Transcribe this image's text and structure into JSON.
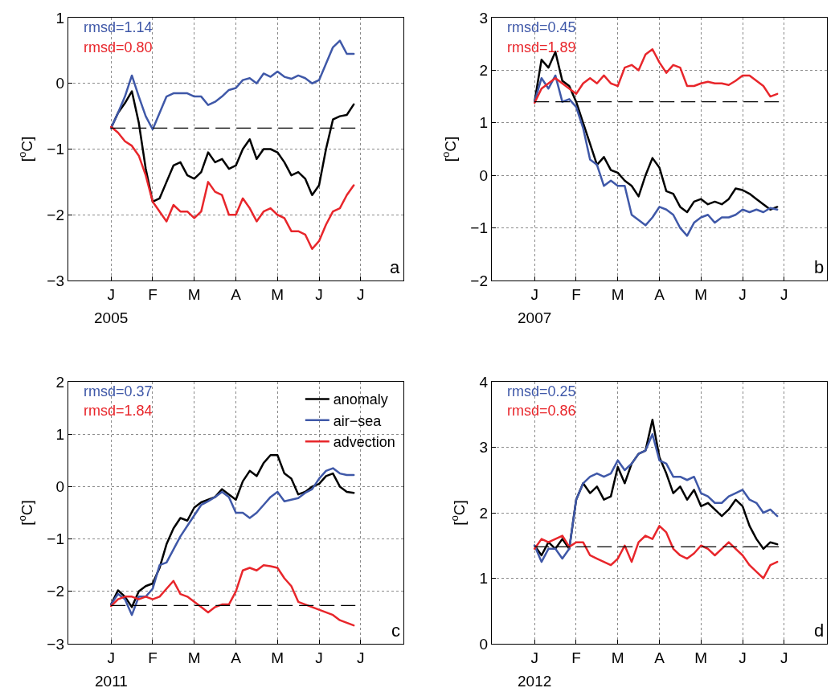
{
  "chart_data": [
    {
      "type": "line",
      "ylabel": "[$^{o}$C]",
      "ylim": [
        -3,
        1
      ],
      "yticks": [
        -3,
        -2,
        -1,
        0,
        1
      ],
      "categories": [
        "J",
        null,
        null,
        null,
        null,
        null,
        "F",
        null,
        null,
        null,
        null,
        null,
        "M",
        null,
        null,
        null,
        null,
        null,
        "A",
        null,
        null,
        null,
        null,
        null,
        "M",
        null,
        null,
        null,
        null,
        null,
        "J",
        null,
        null,
        null,
        null,
        null,
        "J"
      ],
      "grid": true,
      "legend": false,
      "line_style": "solid",
      "annotations": [
        "rmsd=1.14",
        "rmsd=0.80",
        "2005",
        "a"
      ],
      "ref_lines": [
        {
          "axis": "y",
          "value": -0.68,
          "color": "#000000",
          "line_style": "dashed"
        }
      ],
      "series": [
        {
          "color": "#000000",
          "values": [
            -0.68,
            -0.45,
            -0.3,
            -0.12,
            -0.6,
            -1.3,
            -1.8,
            -1.75,
            -1.5,
            -1.25,
            -1.2,
            -1.4,
            -1.45,
            -1.35,
            -1.05,
            -1.2,
            -1.15,
            -1.3,
            -1.25,
            -1.0,
            -0.85,
            -1.15,
            -1.0,
            -1.0,
            -1.05,
            -1.2,
            -1.4,
            -1.35,
            -1.45,
            -1.7,
            -1.55,
            -1.0,
            -0.55,
            -0.5,
            -0.48,
            -0.32,
            null
          ]
        },
        {
          "color": "#3f58a8",
          "values": [
            -0.68,
            -0.45,
            -0.2,
            0.12,
            -0.2,
            -0.5,
            -0.7,
            -0.45,
            -0.2,
            -0.15,
            -0.15,
            -0.15,
            -0.2,
            -0.2,
            -0.33,
            -0.28,
            -0.2,
            -0.1,
            -0.07,
            0.05,
            0.08,
            0.0,
            0.15,
            0.1,
            0.18,
            0.1,
            0.07,
            0.12,
            0.08,
            0.0,
            0.05,
            0.3,
            0.55,
            0.65,
            0.45,
            0.45,
            null
          ]
        },
        {
          "color": "#e8262b",
          "values": [
            -0.66,
            -0.75,
            -0.88,
            -0.95,
            -1.1,
            -1.4,
            -1.8,
            -1.95,
            -2.1,
            -1.85,
            -1.95,
            -1.95,
            -2.05,
            -1.95,
            -1.5,
            -1.65,
            -1.7,
            -2.0,
            -2.0,
            -1.75,
            -1.9,
            -2.1,
            -1.95,
            -1.9,
            -2.0,
            -2.05,
            -2.25,
            -2.25,
            -2.3,
            -2.52,
            -2.4,
            -2.15,
            -1.95,
            -1.9,
            -1.7,
            -1.55,
            null
          ]
        }
      ]
    },
    {
      "type": "line",
      "ylabel": "[$^{o}$C]",
      "ylim": [
        -2,
        3
      ],
      "yticks": [
        -2,
        -1,
        0,
        1,
        2,
        3
      ],
      "categories": [
        "J",
        null,
        null,
        null,
        null,
        null,
        "F",
        null,
        null,
        null,
        null,
        null,
        "M",
        null,
        null,
        null,
        null,
        null,
        "A",
        null,
        null,
        null,
        null,
        null,
        "M",
        null,
        null,
        null,
        null,
        null,
        "J",
        null,
        null,
        null,
        null,
        null,
        "J"
      ],
      "grid": true,
      "legend": false,
      "line_style": "solid",
      "annotations": [
        "rmsd=0.45",
        "rmsd=1.89",
        "2007",
        "b"
      ],
      "ref_lines": [
        {
          "axis": "y",
          "value": 1.4,
          "color": "#000000",
          "line_style": "dashed"
        }
      ],
      "series": [
        {
          "color": "#000000",
          "values": [
            1.4,
            2.2,
            2.05,
            2.35,
            1.8,
            1.7,
            1.4,
            1.0,
            0.6,
            0.2,
            0.35,
            0.1,
            0.05,
            -0.1,
            -0.2,
            -0.4,
            0.0,
            0.33,
            0.15,
            -0.3,
            -0.35,
            -0.6,
            -0.7,
            -0.5,
            -0.45,
            -0.55,
            -0.5,
            -0.55,
            -0.45,
            -0.25,
            -0.28,
            -0.35,
            -0.45,
            -0.55,
            -0.65,
            -0.6,
            null
          ]
        },
        {
          "color": "#3f58a8",
          "values": [
            1.4,
            1.85,
            1.65,
            1.9,
            1.4,
            1.45,
            1.3,
            0.9,
            0.3,
            0.2,
            -0.2,
            -0.1,
            -0.2,
            -0.2,
            -0.75,
            -0.85,
            -0.95,
            -0.8,
            -0.6,
            -0.65,
            -0.75,
            -1.0,
            -1.15,
            -0.9,
            -0.8,
            -0.75,
            -0.9,
            -0.8,
            -0.8,
            -0.75,
            -0.65,
            -0.7,
            -0.65,
            -0.7,
            -0.62,
            -0.65,
            null
          ]
        },
        {
          "color": "#e8262b",
          "values": [
            1.38,
            1.65,
            1.75,
            1.85,
            1.75,
            1.65,
            1.55,
            1.75,
            1.85,
            1.75,
            1.9,
            1.75,
            1.7,
            2.05,
            2.1,
            2.0,
            2.3,
            2.4,
            2.15,
            1.95,
            2.1,
            2.05,
            1.7,
            1.7,
            1.75,
            1.78,
            1.75,
            1.75,
            1.72,
            1.8,
            1.9,
            1.9,
            1.8,
            1.7,
            1.5,
            1.55,
            null
          ]
        }
      ]
    },
    {
      "type": "line",
      "ylabel": "[$^{o}$C]",
      "ylim": [
        -3,
        2
      ],
      "yticks": [
        -3,
        -2,
        -1,
        0,
        1,
        2
      ],
      "categories": [
        "J",
        null,
        null,
        null,
        null,
        null,
        "F",
        null,
        null,
        null,
        null,
        null,
        "M",
        null,
        null,
        null,
        null,
        null,
        "A",
        null,
        null,
        null,
        null,
        null,
        "M",
        null,
        null,
        null,
        null,
        null,
        "J",
        null,
        null,
        null,
        null,
        null,
        "J"
      ],
      "grid": true,
      "legend": "top right",
      "line_style": "solid",
      "annotations": [
        "rmsd=0.37",
        "rmsd=1.84",
        "2011",
        "c"
      ],
      "ref_lines": [
        {
          "axis": "y",
          "value": -2.27,
          "color": "#000000",
          "line_style": "dashed"
        }
      ],
      "series": [
        {
          "name": "anomaly",
          "color": "#000000",
          "values": [
            -2.25,
            -1.98,
            -2.1,
            -2.3,
            -2.0,
            -1.9,
            -1.85,
            -1.55,
            -1.1,
            -0.8,
            -0.6,
            -0.65,
            -0.4,
            -0.3,
            -0.25,
            -0.2,
            -0.05,
            -0.15,
            -0.25,
            0.1,
            0.3,
            0.2,
            0.45,
            0.6,
            0.6,
            0.25,
            0.15,
            -0.15,
            -0.1,
            0.0,
            0.05,
            0.2,
            0.25,
            0.0,
            -0.1,
            -0.12,
            null
          ]
        },
        {
          "name": "air−sea",
          "color": "#3f58a8",
          "values": [
            -2.25,
            -2.05,
            -2.15,
            -2.45,
            -2.1,
            -2.1,
            -1.95,
            -1.5,
            -1.45,
            -1.2,
            -0.95,
            -0.75,
            -0.55,
            -0.35,
            -0.28,
            -0.2,
            -0.1,
            -0.2,
            -0.5,
            -0.5,
            -0.6,
            -0.5,
            -0.35,
            -0.2,
            -0.1,
            -0.28,
            -0.25,
            -0.22,
            -0.12,
            -0.05,
            0.15,
            0.3,
            0.35,
            0.25,
            0.22,
            0.22,
            null
          ]
        },
        {
          "name": "advection",
          "color": "#e8262b",
          "values": [
            -2.28,
            -2.15,
            -2.1,
            -2.1,
            -2.15,
            -2.1,
            -2.15,
            -2.1,
            -1.95,
            -1.8,
            -2.05,
            -2.1,
            -2.2,
            -2.3,
            -2.4,
            -2.3,
            -2.25,
            -2.25,
            -2.0,
            -1.6,
            -1.55,
            -1.6,
            -1.5,
            -1.52,
            -1.55,
            -1.75,
            -1.9,
            -2.2,
            -2.25,
            -2.3,
            -2.35,
            -2.4,
            -2.45,
            -2.55,
            -2.6,
            -2.65,
            null
          ]
        }
      ]
    },
    {
      "type": "line",
      "ylabel": "[$^{o}$C]",
      "ylim": [
        0,
        4
      ],
      "yticks": [
        0,
        1,
        2,
        3,
        4
      ],
      "categories": [
        "J",
        null,
        null,
        null,
        null,
        null,
        "F",
        null,
        null,
        null,
        null,
        null,
        "M",
        null,
        null,
        null,
        null,
        null,
        "A",
        null,
        null,
        null,
        null,
        null,
        "M",
        null,
        null,
        null,
        null,
        null,
        "J",
        null,
        null,
        null,
        null,
        null,
        "J"
      ],
      "grid": true,
      "legend": false,
      "line_style": "solid",
      "annotations": [
        "rmsd=0.25",
        "rmsd=0.86",
        "2012",
        "d"
      ],
      "ref_lines": [
        {
          "axis": "y",
          "value": 1.48,
          "color": "#000000",
          "line_style": "dashed"
        }
      ],
      "series": [
        {
          "color": "#000000",
          "values": [
            1.5,
            1.35,
            1.55,
            1.45,
            1.6,
            1.45,
            2.2,
            2.45,
            2.3,
            2.4,
            2.2,
            2.25,
            2.7,
            2.45,
            2.75,
            2.9,
            2.95,
            3.42,
            2.85,
            2.6,
            2.3,
            2.4,
            2.2,
            2.35,
            2.1,
            2.15,
            2.05,
            1.95,
            2.05,
            2.2,
            2.1,
            1.8,
            1.6,
            1.45,
            1.55,
            1.52,
            null
          ]
        },
        {
          "color": "#3f58a8",
          "values": [
            1.5,
            1.25,
            1.45,
            1.45,
            1.3,
            1.45,
            2.2,
            2.45,
            2.55,
            2.6,
            2.55,
            2.6,
            2.8,
            2.65,
            2.75,
            2.9,
            2.95,
            3.2,
            2.8,
            2.75,
            2.55,
            2.55,
            2.5,
            2.55,
            2.3,
            2.25,
            2.15,
            2.15,
            2.25,
            2.3,
            2.35,
            2.2,
            2.15,
            2.0,
            2.05,
            1.95,
            null
          ]
        },
        {
          "color": "#e8262b",
          "values": [
            1.45,
            1.6,
            1.55,
            1.6,
            1.65,
            1.48,
            1.55,
            1.55,
            1.35,
            1.3,
            1.25,
            1.2,
            1.3,
            1.5,
            1.25,
            1.55,
            1.65,
            1.6,
            1.8,
            1.7,
            1.45,
            1.35,
            1.3,
            1.38,
            1.5,
            1.45,
            1.35,
            1.45,
            1.55,
            1.45,
            1.35,
            1.2,
            1.1,
            1.0,
            1.2,
            1.25,
            null
          ]
        }
      ]
    }
  ]
}
